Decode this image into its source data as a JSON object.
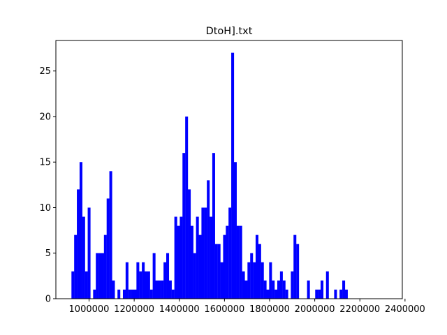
{
  "chart_data": {
    "type": "bar",
    "title": "DtoH].txt",
    "xlabel": "",
    "ylabel": "",
    "xlim": [
      853000,
      2388000
    ],
    "ylim": [
      0,
      28.35
    ],
    "xticks": [
      1000000,
      1200000,
      1400000,
      1600000,
      1800000,
      2000000,
      2200000,
      2400000
    ],
    "xtick_labels": [
      "1000000",
      "1200000",
      "1400000",
      "1600000",
      "1800000",
      "2000000",
      "2200000",
      "2400000"
    ],
    "yticks": [
      0,
      5,
      10,
      15,
      20,
      25
    ],
    "ytick_labels": [
      "0",
      "5",
      "10",
      "15",
      "20",
      "25"
    ],
    "bin_start": 922000,
    "bin_width": 12000,
    "counts": [
      3,
      7,
      12,
      15,
      9,
      3,
      10,
      0,
      1,
      5,
      5,
      5,
      7,
      11,
      14,
      2,
      0,
      1,
      0,
      1,
      4,
      1,
      1,
      1,
      4,
      3,
      4,
      3,
      3,
      1,
      5,
      2,
      2,
      2,
      4,
      5,
      2,
      1,
      9,
      8,
      9,
      16,
      20,
      12,
      8,
      5,
      9,
      7,
      10,
      10,
      13,
      9,
      16,
      6,
      6,
      4,
      7,
      8,
      10,
      27,
      15,
      8,
      8,
      3,
      2,
      4,
      5,
      4,
      7,
      6,
      4,
      2,
      1,
      4,
      2,
      1,
      2,
      3,
      2,
      1,
      0,
      3,
      7,
      6,
      0,
      0,
      0,
      2,
      0,
      0,
      1,
      1,
      2,
      0,
      3,
      0,
      0,
      1,
      0,
      1,
      2,
      1
    ],
    "bar_color": "#0000ff",
    "grid": false,
    "legend": "none"
  }
}
